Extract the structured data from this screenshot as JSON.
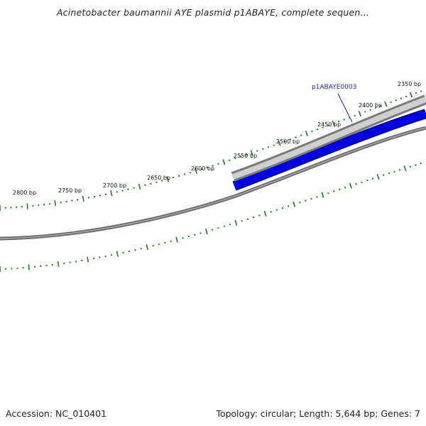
{
  "title": "Acinetobacter baumannii AYE plasmid p1ABAYE, complete sequen...",
  "accession_text": "Accession: NC_010401",
  "summary_text": "Topology: circular; Length: 5,644 bp; Genes: 7",
  "gene": {
    "name": "p1ABAYE0003",
    "label_color": "#1a1acc",
    "fill_color": "#0000e6",
    "outline_color": "#000099"
  },
  "ticks": {
    "color": "#1e7a1e",
    "labels": [
      "2350 bp",
      "2400 bp",
      "2450 bp",
      "2500 bp",
      "2550 bp",
      "2600 bp",
      "2650 bp",
      "2700 bp",
      "2750 bp",
      "2800 bp"
    ]
  },
  "backbone_color": "#808080",
  "highlight_color": "#cfcfcf"
}
